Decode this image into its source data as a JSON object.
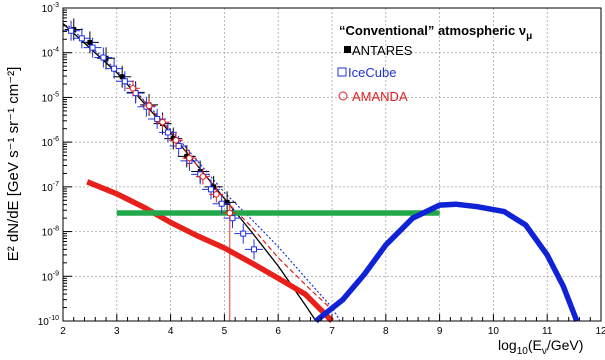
{
  "chart_data": {
    "type": "line",
    "title": "“Conventional” atmospheric ν",
    "title_subscript": "μ",
    "xlabel": {
      "prefix": "log",
      "sub": "10",
      "middle": "(E",
      "sub2": "ν",
      "suffix": "/GeV)"
    },
    "ylabel": "E² dN/dE [GeV s⁻¹ sr⁻¹ cm⁻²]",
    "x_scale": "linear",
    "y_scale": "log",
    "xlim": [
      2,
      12
    ],
    "ylim": [
      1e-10,
      0.001
    ],
    "grid": true,
    "legend_position": "top-right",
    "x_ticks": [
      "2",
      "3",
      "4",
      "5",
      "6",
      "7",
      "8",
      "9",
      "10",
      "11",
      "12"
    ],
    "y_ticks": [
      {
        "base": "10",
        "exp": "-10"
      },
      {
        "base": "10",
        "exp": "-9"
      },
      {
        "base": "10",
        "exp": "-8"
      },
      {
        "base": "10",
        "exp": "-7"
      },
      {
        "base": "10",
        "exp": "-6"
      },
      {
        "base": "10",
        "exp": "-5"
      },
      {
        "base": "10",
        "exp": "-4"
      },
      {
        "base": "10",
        "exp": "-3"
      }
    ],
    "legend": [
      {
        "label": "ANTARES",
        "marker": "filled-square",
        "color": "#000000"
      },
      {
        "label": "IceCube",
        "marker": "open-square",
        "color": "#1f32d8"
      },
      {
        "label": "AMANDA",
        "marker": "open-circle",
        "color": "#e02020"
      }
    ],
    "series": [
      {
        "name": "ANTARES",
        "kind": "points",
        "color": "#000000",
        "points": [
          [
            2.2,
            0.00033
          ],
          [
            2.5,
            0.00017
          ],
          [
            2.8,
            7.5e-05
          ],
          [
            3.1,
            2.9e-05
          ],
          [
            3.35,
            1.3e-05
          ],
          [
            3.6,
            6.8e-06
          ],
          [
            3.85,
            2.6e-06
          ],
          [
            4.05,
            1.2e-06
          ],
          [
            4.3,
            4.8e-07
          ],
          [
            4.55,
            2.2e-07
          ],
          [
            4.8,
            1e-07
          ],
          [
            5.05,
            4.5e-08
          ]
        ]
      },
      {
        "name": "IceCube",
        "kind": "points",
        "color": "#1f32d8",
        "points": [
          [
            2.15,
            0.00031
          ],
          [
            2.35,
            0.00021
          ],
          [
            2.55,
            0.00013
          ],
          [
            2.75,
            7.8e-05
          ],
          [
            2.95,
            4.4e-05
          ],
          [
            3.15,
            2.3e-05
          ],
          [
            3.35,
            1.25e-05
          ],
          [
            3.55,
            6.2e-06
          ],
          [
            3.75,
            3.3e-06
          ],
          [
            3.95,
            1.65e-06
          ],
          [
            4.15,
            8.2e-07
          ],
          [
            4.35,
            3.8e-07
          ],
          [
            4.55,
            1.9e-07
          ],
          [
            4.75,
            8.8e-08
          ],
          [
            4.95,
            4.2e-08
          ],
          [
            5.15,
            2e-08
          ],
          [
            5.35,
            9e-09
          ],
          [
            5.55,
            4e-09
          ]
        ]
      },
      {
        "name": "AMANDA",
        "kind": "points",
        "color": "#e02020",
        "points": [
          [
            3.3,
            1.6e-05
          ],
          [
            3.6,
            6.5e-06
          ],
          [
            3.85,
            2.8e-06
          ],
          [
            4.1,
            1.1e-06
          ],
          [
            4.35,
            4.4e-07
          ],
          [
            4.6,
            1.7e-07
          ],
          [
            4.85,
            6.8e-08
          ],
          [
            5.1,
            2.6e-08
          ]
        ]
      },
      {
        "kind": "line",
        "style": "solid",
        "color": "#000000",
        "points": [
          [
            2.0,
            0.00045
          ],
          [
            3.0,
            3.6e-05
          ],
          [
            4.0,
            1.6e-06
          ],
          [
            5.0,
            5.5e-08
          ],
          [
            5.5,
            1e-08
          ],
          [
            6.0,
            1.7e-09
          ],
          [
            6.5,
            2.3e-10
          ],
          [
            6.7,
            1e-10
          ]
        ]
      },
      {
        "kind": "line",
        "style": "dashed",
        "color": "#e02020",
        "points": [
          [
            3.3,
            1.6e-05
          ],
          [
            4.0,
            1.7e-06
          ],
          [
            5.0,
            5.2e-08
          ],
          [
            5.5,
            1.3e-08
          ],
          [
            6.0,
            2.6e-09
          ],
          [
            6.6,
            5e-10
          ],
          [
            7.0,
            1.8e-10
          ]
        ]
      },
      {
        "kind": "line",
        "style": "dotted",
        "color": "#1f32d8",
        "points": [
          [
            2.1,
            0.0004
          ],
          [
            3.0,
            4e-05
          ],
          [
            4.0,
            1.9e-06
          ],
          [
            5.0,
            7.5e-08
          ],
          [
            5.5,
            1.9e-08
          ],
          [
            6.0,
            4.6e-09
          ],
          [
            6.5,
            9.5e-10
          ],
          [
            7.0,
            2e-10
          ],
          [
            7.15,
            1e-10
          ]
        ]
      },
      {
        "kind": "line",
        "style": "thick",
        "color": "#e8201c",
        "points": [
          [
            2.45,
            1.3e-07
          ],
          [
            3.0,
            7e-08
          ],
          [
            3.5,
            3.5e-08
          ],
          [
            4.0,
            1.6e-08
          ],
          [
            4.5,
            8e-09
          ],
          [
            5.0,
            4.3e-09
          ],
          [
            5.5,
            2e-09
          ],
          [
            6.0,
            9e-10
          ],
          [
            6.5,
            4e-10
          ],
          [
            7.0,
            1e-10
          ]
        ]
      },
      {
        "kind": "line",
        "style": "thick",
        "color": "#22a84a",
        "points": [
          [
            3.0,
            2.6e-08
          ],
          [
            9.0,
            2.6e-08
          ]
        ]
      },
      {
        "kind": "line",
        "style": "thick",
        "color": "#1022d6",
        "points": [
          [
            6.7,
            1e-10
          ],
          [
            7.2,
            3e-10
          ],
          [
            7.6,
            1.1e-09
          ],
          [
            8.0,
            5e-09
          ],
          [
            8.5,
            2e-08
          ],
          [
            9.0,
            3.9e-08
          ],
          [
            9.3,
            4.1e-08
          ],
          [
            9.7,
            3.6e-08
          ],
          [
            10.2,
            2.8e-08
          ],
          [
            10.6,
            1.4e-08
          ],
          [
            11.0,
            3e-09
          ],
          [
            11.3,
            6e-10
          ],
          [
            11.55,
            1e-10
          ]
        ]
      },
      {
        "kind": "line",
        "style": "thin",
        "color": "#e02020",
        "points": [
          [
            5.1,
            3e-08
          ],
          [
            5.1,
            1e-10
          ]
        ]
      }
    ]
  }
}
